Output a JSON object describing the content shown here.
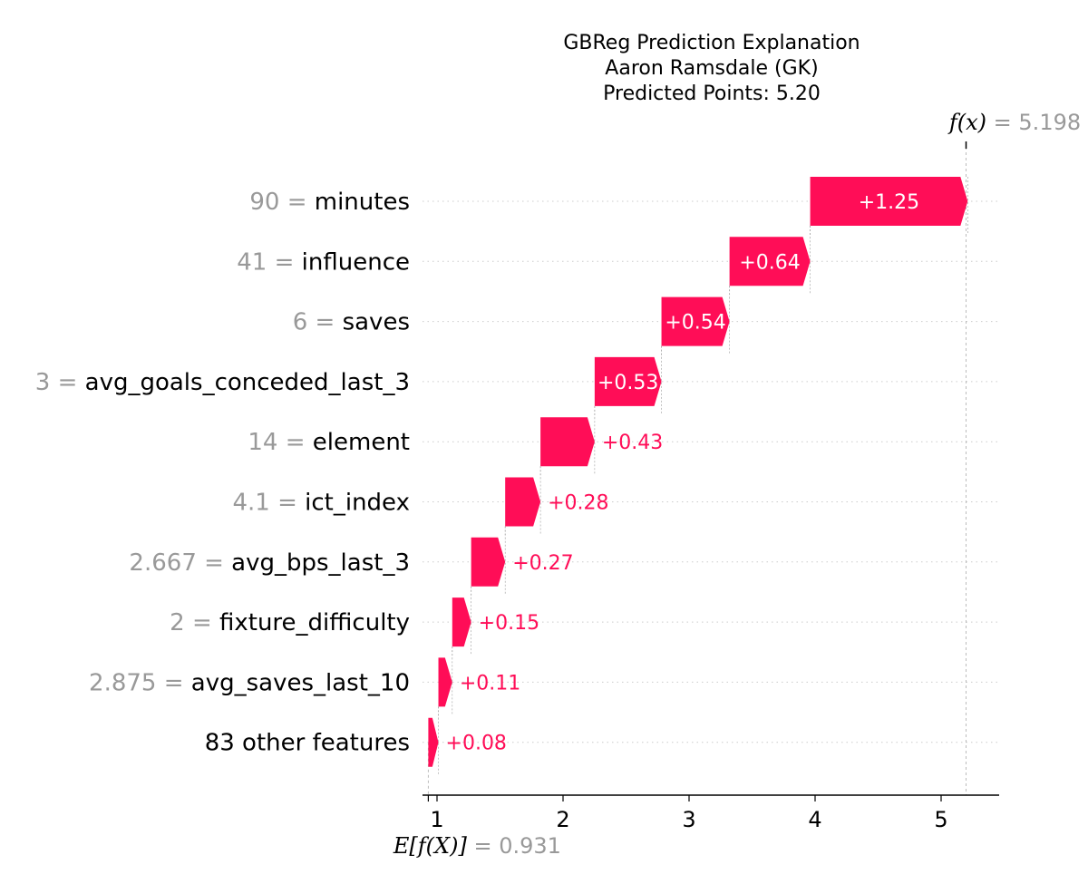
{
  "chart_data": {
    "type": "waterfall",
    "title_lines": [
      "GBReg Prediction Explanation",
      "Aaron Ramsdale (GK)",
      "Predicted Points: 5.20"
    ],
    "base_value": 0.931,
    "base_value_label": "0.931",
    "final_value": 5.198,
    "final_value_label": "5.198",
    "fx_label": "f(x)",
    "efx_label": "E[f(X)]",
    "features": [
      {
        "value": "90",
        "name": "minutes",
        "contribution": 1.25,
        "label": "+1.25"
      },
      {
        "value": "41",
        "name": "influence",
        "contribution": 0.64,
        "label": "+0.64"
      },
      {
        "value": "6",
        "name": "saves",
        "contribution": 0.54,
        "label": "+0.54"
      },
      {
        "value": "3",
        "name": "avg_goals_conceded_last_3",
        "contribution": 0.53,
        "label": "+0.53"
      },
      {
        "value": "14",
        "name": "element",
        "contribution": 0.43,
        "label": "+0.43"
      },
      {
        "value": "4.1",
        "name": "ict_index",
        "contribution": 0.28,
        "label": "+0.28"
      },
      {
        "value": "2.667",
        "name": "avg_bps_last_3",
        "contribution": 0.27,
        "label": "+0.27"
      },
      {
        "value": "2",
        "name": "fixture_difficulty",
        "contribution": 0.15,
        "label": "+0.15"
      },
      {
        "value": "2.875",
        "name": "avg_saves_last_10",
        "contribution": 0.11,
        "label": "+0.11"
      },
      {
        "value": "",
        "name": "83 other features",
        "contribution": 0.08,
        "label": "+0.08"
      }
    ],
    "x_ticks": [
      1,
      2,
      3,
      4,
      5
    ],
    "xlim": [
      0.9,
      5.45
    ],
    "colors": {
      "positive": "#ff0d57",
      "gray": "#999999",
      "grid": "#cccccc"
    }
  }
}
